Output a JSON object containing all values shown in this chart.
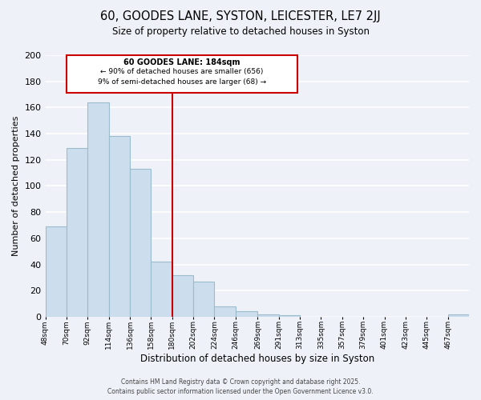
{
  "title": "60, GOODES LANE, SYSTON, LEICESTER, LE7 2JJ",
  "subtitle": "Size of property relative to detached houses in Syston",
  "xlabel": "Distribution of detached houses by size in Syston",
  "ylabel": "Number of detached properties",
  "bar_color": "#ccdded",
  "bar_edge_color": "#9bbccc",
  "background_color": "#eef2f8",
  "grid_color": "#ffffff",
  "vline_x": 180,
  "vline_color": "#cc0000",
  "bins": [
    48,
    70,
    92,
    114,
    136,
    158,
    180,
    202,
    224,
    246,
    269,
    291,
    313,
    335,
    357,
    379,
    401,
    423,
    445,
    467,
    489
  ],
  "counts": [
    69,
    129,
    164,
    138,
    113,
    42,
    32,
    27,
    8,
    4,
    2,
    1,
    0,
    0,
    0,
    0,
    0,
    0,
    0,
    2
  ],
  "annotation_title": "60 GOODES LANE: 184sqm",
  "annotation_line1": "← 90% of detached houses are smaller (656)",
  "annotation_line2": "9% of semi-detached houses are larger (68) →",
  "annotation_box_color": "#ffffff",
  "annotation_box_edge": "#cc0000",
  "footer1": "Contains HM Land Registry data © Crown copyright and database right 2025.",
  "footer2": "Contains public sector information licensed under the Open Government Licence v3.0.",
  "ylim": [
    0,
    200
  ],
  "yticks": [
    0,
    20,
    40,
    60,
    80,
    100,
    120,
    140,
    160,
    180,
    200
  ]
}
